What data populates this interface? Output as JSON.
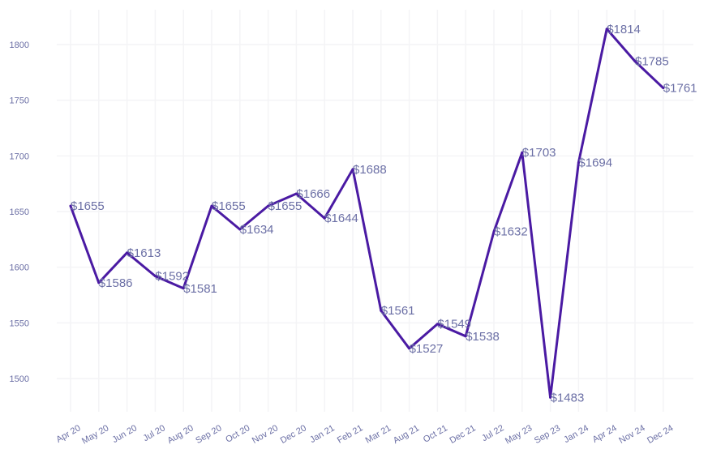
{
  "chart_data": {
    "type": "line",
    "title": "",
    "xlabel": "",
    "ylabel": "",
    "categories": [
      "Apr 20",
      "May 20",
      "Jun 20",
      "Jul 20",
      "Aug 20",
      "Sep 20",
      "Oct 20",
      "Nov 20",
      "Dec 20",
      "Jan 21",
      "Feb 21",
      "Mar 21",
      "Aug 21",
      "Oct 21",
      "Dec 21",
      "Jul 22",
      "May 23",
      "Sep 23",
      "Jan 24",
      "Apr 24",
      "Nov 24",
      "Dec 24"
    ],
    "series": [
      {
        "values": [
          1655,
          1586,
          1613,
          1592,
          1581,
          1655,
          1634,
          1655,
          1666,
          1644,
          1688,
          1561,
          1527,
          1549,
          1538,
          1632,
          1703,
          1483,
          1694,
          1814,
          1785,
          1761
        ],
        "labels": [
          "$1655",
          "$1586",
          "$1613",
          "$1592",
          "$1581",
          "$1655",
          "$1634",
          "$1655",
          "$1666",
          "$1644",
          "$1688",
          "$1561",
          "$1527",
          "$1549",
          "$1538",
          "$1632",
          "$1703",
          "$1483",
          "$1694",
          "$1814",
          "$1785",
          "$1761"
        ]
      }
    ],
    "yticks": [
      1500,
      1550,
      1600,
      1650,
      1700,
      1750,
      1800
    ],
    "ylim": [
      1462,
      1830
    ],
    "grid": true,
    "legend": "none",
    "colors": {
      "line": "#4a1aa3",
      "label": "#6b6fa5",
      "tick": "#6b6fa5",
      "grid": "#f4f4f6"
    }
  }
}
